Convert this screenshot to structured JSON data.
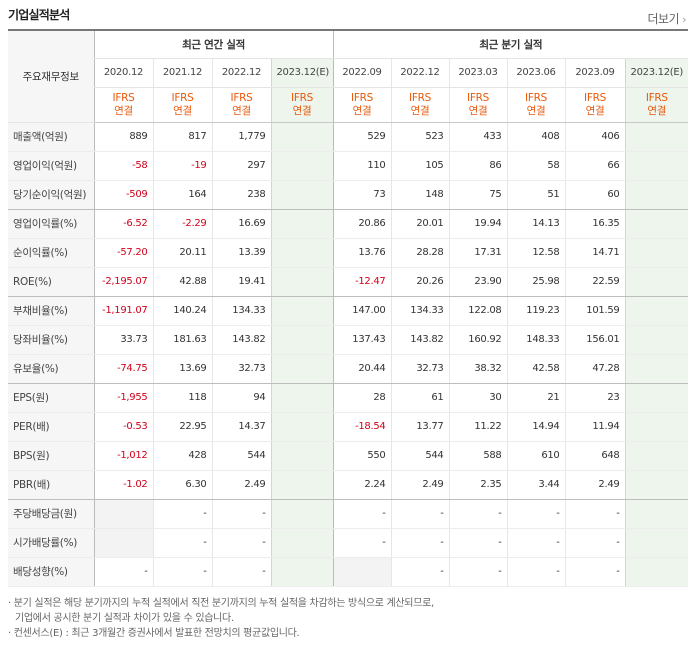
{
  "header": {
    "title": "기업실적분석",
    "more_label": "더보기",
    "more_icon": "chevron-right-icon"
  },
  "table": {
    "label_header": "주요재무정보",
    "groups": [
      {
        "label": "최근 연간 실적",
        "span": 4
      },
      {
        "label": "최근 분기 실적",
        "span": 6
      }
    ],
    "periods": [
      {
        "label": "2020.12",
        "estimate": false
      },
      {
        "label": "2021.12",
        "estimate": false
      },
      {
        "label": "2022.12",
        "estimate": false
      },
      {
        "label": "2023.12(E)",
        "estimate": true
      },
      {
        "label": "2022.09",
        "estimate": false
      },
      {
        "label": "2022.12",
        "estimate": false
      },
      {
        "label": "2023.03",
        "estimate": false
      },
      {
        "label": "2023.06",
        "estimate": false
      },
      {
        "label": "2023.09",
        "estimate": false
      },
      {
        "label": "2023.12(E)",
        "estimate": true
      }
    ],
    "basis_line1": "IFRS",
    "basis_line2": "연결",
    "rows": [
      {
        "label": "매출액(억원)",
        "values": [
          "889",
          "817",
          "1,779",
          "",
          "529",
          "523",
          "433",
          "408",
          "406",
          ""
        ]
      },
      {
        "label": "영업이익(억원)",
        "values": [
          "-58",
          "-19",
          "297",
          "",
          "110",
          "105",
          "86",
          "58",
          "66",
          ""
        ]
      },
      {
        "label": "당기순이익(억원)",
        "values": [
          "-509",
          "164",
          "238",
          "",
          "73",
          "148",
          "75",
          "51",
          "60",
          ""
        ],
        "group_end": true
      },
      {
        "label": "영업이익률(%)",
        "values": [
          "-6.52",
          "-2.29",
          "16.69",
          "",
          "20.86",
          "20.01",
          "19.94",
          "14.13",
          "16.35",
          ""
        ]
      },
      {
        "label": "순이익률(%)",
        "values": [
          "-57.20",
          "20.11",
          "13.39",
          "",
          "13.76",
          "28.28",
          "17.31",
          "12.58",
          "14.71",
          ""
        ]
      },
      {
        "label": "ROE(%)",
        "values": [
          "-2,195.07",
          "42.88",
          "19.41",
          "",
          "-12.47",
          "20.26",
          "23.90",
          "25.98",
          "22.59",
          ""
        ],
        "group_end": true
      },
      {
        "label": "부채비율(%)",
        "values": [
          "-1,191.07",
          "140.24",
          "134.33",
          "",
          "147.00",
          "134.33",
          "122.08",
          "119.23",
          "101.59",
          ""
        ]
      },
      {
        "label": "당좌비율(%)",
        "values": [
          "33.73",
          "181.63",
          "143.82",
          "",
          "137.43",
          "143.82",
          "160.92",
          "148.33",
          "156.01",
          ""
        ]
      },
      {
        "label": "유보율(%)",
        "values": [
          "-74.75",
          "13.69",
          "32.73",
          "",
          "20.44",
          "32.73",
          "38.32",
          "42.58",
          "47.28",
          ""
        ],
        "group_end": true
      },
      {
        "label": "EPS(원)",
        "values": [
          "-1,955",
          "118",
          "94",
          "",
          "28",
          "61",
          "30",
          "21",
          "23",
          ""
        ]
      },
      {
        "label": "PER(배)",
        "values": [
          "-0.53",
          "22.95",
          "14.37",
          "",
          "-18.54",
          "13.77",
          "11.22",
          "14.94",
          "11.94",
          ""
        ]
      },
      {
        "label": "BPS(원)",
        "values": [
          "-1,012",
          "428",
          "544",
          "",
          "550",
          "544",
          "588",
          "610",
          "648",
          ""
        ]
      },
      {
        "label": "PBR(배)",
        "values": [
          "-1.02",
          "6.30",
          "2.49",
          "",
          "2.24",
          "2.49",
          "2.35",
          "3.44",
          "2.49",
          ""
        ],
        "group_end": true
      },
      {
        "label": "주당배당금(원)",
        "values": [
          "",
          "-",
          "-",
          "",
          "-",
          "-",
          "-",
          "-",
          "-",
          ""
        ]
      },
      {
        "label": "시가배당률(%)",
        "values": [
          "",
          "-",
          "-",
          "",
          "-",
          "-",
          "-",
          "-",
          "-",
          ""
        ]
      },
      {
        "label": "배당성향(%)",
        "values": [
          "-",
          "-",
          "-",
          "",
          "",
          "-",
          "-",
          "-",
          "-",
          ""
        ]
      }
    ]
  },
  "notes": [
    "· 분기 실적은 해당 분기까지의 누적 실적에서 직전 분기까지의 누적 실적을 차감하는 방식으로 계산되므로,",
    "기업에서 공시한 분기 실적과 차이가 있을 수 있습니다.",
    "· 컨센서스(E) : 최근 3개월간 증권사에서 발표한 전망치의 평균값입니다."
  ],
  "colors": {
    "ifrs": "#e8590c",
    "negative": "#d0021b",
    "estimate_bg": "#edf5ec",
    "label_bg": "#f6f6f6"
  }
}
